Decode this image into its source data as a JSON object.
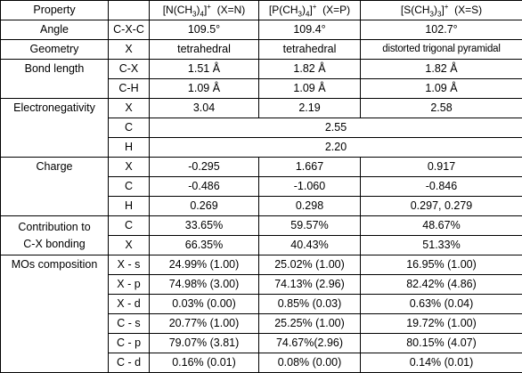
{
  "header": {
    "property": "Property",
    "col_n": {
      "pre": "[N(CH",
      "sub3": "3",
      "mid": ")",
      "sub4": "4",
      "post": "]",
      "sup": "+",
      "tail": "(X=N)"
    },
    "col_p": {
      "pre": "[P(CH",
      "sub3": "3",
      "mid": ")",
      "sub4": "4",
      "post": "]",
      "sup": "+",
      "tail": "(X=P)"
    },
    "col_s": {
      "pre": "[S(CH",
      "sub3": "3",
      "mid": ")",
      "sub4": "3",
      "post": "]",
      "sup": "+",
      "tail": "(X=S)"
    }
  },
  "rows": {
    "angle": {
      "prop": "Angle",
      "bond": "C-X-C",
      "n": "109.5°",
      "p": "109.4°",
      "s": "102.7°"
    },
    "geometry": {
      "prop": "Geometry",
      "bond": "X",
      "n": "tetrahedral",
      "p": "tetrahedral",
      "s": "distorted trigonal pyramidal"
    },
    "bond_length": {
      "prop": "Bond length",
      "cx": {
        "bond": "C-X",
        "n": "1.51 Å",
        "p": "1.82 Å",
        "s": "1.82 Å"
      },
      "ch": {
        "bond": "C-H",
        "n": "1.09 Å",
        "p": "1.09 Å",
        "s": "1.09 Å"
      }
    },
    "electronegativity": {
      "prop": "Electronegativity",
      "x": {
        "bond": "X",
        "n": "3.04",
        "p": "2.19",
        "s": "2.58"
      },
      "c": {
        "bond": "C",
        "all": "2.55"
      },
      "h": {
        "bond": "H",
        "all": "2.20"
      }
    },
    "charge": {
      "prop": "Charge",
      "x": {
        "bond": "X",
        "n": "-0.295",
        "p": "1.667",
        "s": "0.917"
      },
      "c": {
        "bond": "C",
        "n": "-0.486",
        "p": "-1.060",
        "s": "-0.846"
      },
      "h": {
        "bond": "H",
        "n": "0.269",
        "p": "0.298",
        "s": "0.297, 0.279"
      }
    },
    "contribution": {
      "prop_line1": "Contribution to",
      "prop_line2": "C-X bonding",
      "c": {
        "bond": "C",
        "n": "33.65%",
        "p": "59.57%",
        "s": "48.67%"
      },
      "x": {
        "bond": "X",
        "n": "66.35%",
        "p": "40.43%",
        "s": "51.33%"
      }
    },
    "mos": {
      "prop": "MOs composition",
      "items": [
        {
          "bond": "X - s",
          "n": "24.99% (1.00)",
          "p": "25.02% (1.00)",
          "s": "16.95% (1.00)"
        },
        {
          "bond": "X - p",
          "n": "74.98% (3.00)",
          "p": "74.13% (2.96)",
          "s": "82.42% (4.86)"
        },
        {
          "bond": "X - d",
          "n": "0.03% (0.00)",
          "p": "0.85% (0.03)",
          "s": "0.63% (0.04)"
        },
        {
          "bond": "C - s",
          "n": "20.77% (1.00)",
          "p": "25.25% (1.00)",
          "s": "19.72% (1.00)"
        },
        {
          "bond": "C - p",
          "n": "79.07% (3.81)",
          "p": "74.67%(2.96)",
          "s": "80.15% (4.07)"
        },
        {
          "bond": "C - d",
          "n": "0.16% (0.01)",
          "p": "0.08% (0.00)",
          "s": "0.14% (0.01)"
        }
      ]
    }
  }
}
